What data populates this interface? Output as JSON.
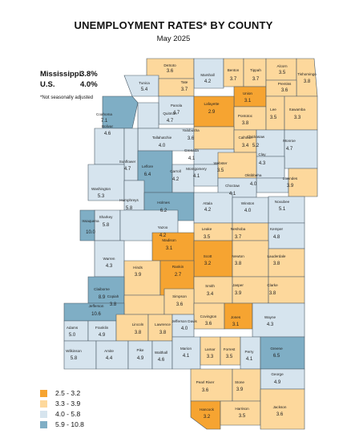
{
  "title": "UNEMPLOYMENT RATES* BY COUNTY",
  "subtitle": "May 2025",
  "stats": [
    {
      "label": "Mississippi",
      "value": "3.8%"
    },
    {
      "label": "U.S.",
      "value": "4.0%"
    }
  ],
  "note": "*Not seasonally adjusted",
  "colors": {
    "b1": "#f6a431",
    "b2": "#fdd89c",
    "b3": "#d6e4ee",
    "b4": "#7faec5",
    "border": "#4a5a66"
  },
  "legend": [
    {
      "label": "2.5 - 3.2",
      "bin": "b1"
    },
    {
      "label": "3.3 - 3.9",
      "bin": "b2"
    },
    {
      "label": "4.0 - 5.8",
      "bin": "b3"
    },
    {
      "label": "5.9 - 10.8",
      "bin": "b4"
    }
  ],
  "counties": [
    {
      "name": "DeSoto",
      "value": "3.6",
      "bin": "b2"
    },
    {
      "name": "Marshall",
      "value": "4.2",
      "bin": "b3"
    },
    {
      "name": "Benton",
      "value": "3.7",
      "bin": "b2"
    },
    {
      "name": "Tippah",
      "value": "3.7",
      "bin": "b2"
    },
    {
      "name": "Alcorn",
      "value": "3.5",
      "bin": "b2"
    },
    {
      "name": "Tishomingo",
      "value": "3.8",
      "bin": "b2"
    },
    {
      "name": "Tunica",
      "value": "5.4",
      "bin": "b3"
    },
    {
      "name": "Tate",
      "value": "3.7",
      "bin": "b2"
    },
    {
      "name": "Union",
      "value": "3.1",
      "bin": "b1"
    },
    {
      "name": "Prentiss",
      "value": "3.6",
      "bin": "b2"
    },
    {
      "name": "Coahoma",
      "value": "7.1",
      "bin": "b4"
    },
    {
      "name": "Panola",
      "value": "4.7",
      "bin": "b3"
    },
    {
      "name": "Lafayette",
      "value": "2.9",
      "bin": "b1"
    },
    {
      "name": "Pontotoc",
      "value": "3.8",
      "bin": "b2"
    },
    {
      "name": "Lee",
      "value": "3.5",
      "bin": "b2"
    },
    {
      "name": "Itawamba",
      "value": "3.3",
      "bin": "b2"
    },
    {
      "name": "Quitman",
      "value": "4.7",
      "bin": "b3"
    },
    {
      "name": "Tallahatchie",
      "value": "4.0",
      "bin": "b3"
    },
    {
      "name": "Yalobusha",
      "value": "3.6",
      "bin": "b2"
    },
    {
      "name": "Calhoun",
      "value": "3.4",
      "bin": "b2"
    },
    {
      "name": "Chickasaw",
      "value": "5.2",
      "bin": "b3"
    },
    {
      "name": "Monroe",
      "value": "4.7",
      "bin": "b3"
    },
    {
      "name": "Bolivar",
      "value": "4.6",
      "bin": "b3"
    },
    {
      "name": "Grenada",
      "value": "4.1",
      "bin": "b3"
    },
    {
      "name": "Clay",
      "value": "4.3",
      "bin": "b3"
    },
    {
      "name": "Sunflower",
      "value": "4.7",
      "bin": "b3"
    },
    {
      "name": "Leflore",
      "value": "6.4",
      "bin": "b4"
    },
    {
      "name": "Carroll",
      "value": "4.2",
      "bin": "b3"
    },
    {
      "name": "Montgomery",
      "value": "4.1",
      "bin": "b3"
    },
    {
      "name": "Webster",
      "value": "3.5",
      "bin": "b2"
    },
    {
      "name": "Oktibbeha",
      "value": "4.0",
      "bin": "b3"
    },
    {
      "name": "Lowndes",
      "value": "3.9",
      "bin": "b2"
    },
    {
      "name": "Washington",
      "value": "5.3",
      "bin": "b3"
    },
    {
      "name": "Choctaw",
      "value": "4.1",
      "bin": "b3"
    },
    {
      "name": "Humphreys",
      "value": "5.8",
      "bin": "b3"
    },
    {
      "name": "Holmes",
      "value": "6.2",
      "bin": "b4"
    },
    {
      "name": "Attala",
      "value": "4.2",
      "bin": "b3"
    },
    {
      "name": "Winston",
      "value": "4.0",
      "bin": "b3"
    },
    {
      "name": "Noxubee",
      "value": "5.1",
      "bin": "b3"
    },
    {
      "name": "Sharkey",
      "value": "5.8",
      "bin": "b3"
    },
    {
      "name": "Issaquena",
      "value": "10.0",
      "bin": "b4"
    },
    {
      "name": "Yazoo",
      "value": "4.2",
      "bin": "b3"
    },
    {
      "name": "Leake",
      "value": "3.5",
      "bin": "b2"
    },
    {
      "name": "Neshoba",
      "value": "3.7",
      "bin": "b2"
    },
    {
      "name": "Kemper",
      "value": "4.8",
      "bin": "b3"
    },
    {
      "name": "Madison",
      "value": "3.1",
      "bin": "b1"
    },
    {
      "name": "Scott",
      "value": "3.2",
      "bin": "b1"
    },
    {
      "name": "Newton",
      "value": "3.8",
      "bin": "b2"
    },
    {
      "name": "Lauderdale",
      "value": "3.8",
      "bin": "b2"
    },
    {
      "name": "Warren",
      "value": "4.3",
      "bin": "b3"
    },
    {
      "name": "Hinds",
      "value": "3.9",
      "bin": "b2"
    },
    {
      "name": "Rankin",
      "value": "2.7",
      "bin": "b1"
    },
    {
      "name": "Smith",
      "value": "3.4",
      "bin": "b2"
    },
    {
      "name": "Jasper",
      "value": "3.9",
      "bin": "b2"
    },
    {
      "name": "Clarke",
      "value": "3.8",
      "bin": "b2"
    },
    {
      "name": "Claiborne",
      "value": "8.9",
      "bin": "b4"
    },
    {
      "name": "Copiah",
      "value": "3.8",
      "bin": "b2"
    },
    {
      "name": "Simpson",
      "value": "3.6",
      "bin": "b2"
    },
    {
      "name": "Jefferson",
      "value": "10.6",
      "bin": "b4"
    },
    {
      "name": "Covington",
      "value": "3.6",
      "bin": "b2"
    },
    {
      "name": "Jones",
      "value": "3.1",
      "bin": "b1"
    },
    {
      "name": "Wayne",
      "value": "4.3",
      "bin": "b3"
    },
    {
      "name": "Adams",
      "value": "5.0",
      "bin": "b3"
    },
    {
      "name": "Franklin",
      "value": "4.9",
      "bin": "b3"
    },
    {
      "name": "Lincoln",
      "value": "3.8",
      "bin": "b2"
    },
    {
      "name": "Lawrence",
      "value": "3.8",
      "bin": "b2"
    },
    {
      "name": "Jefferson Davis",
      "value": "4.0",
      "bin": "b3"
    },
    {
      "name": "Wilkinson",
      "value": "5.8",
      "bin": "b3"
    },
    {
      "name": "Amite",
      "value": "4.4",
      "bin": "b3"
    },
    {
      "name": "Pike",
      "value": "4.9",
      "bin": "b3"
    },
    {
      "name": "Walthall",
      "value": "4.6",
      "bin": "b3"
    },
    {
      "name": "Marion",
      "value": "4.1",
      "bin": "b3"
    },
    {
      "name": "Lamar",
      "value": "3.3",
      "bin": "b2"
    },
    {
      "name": "Forrest",
      "value": "3.5",
      "bin": "b2"
    },
    {
      "name": "Perry",
      "value": "4.1",
      "bin": "b3"
    },
    {
      "name": "Greene",
      "value": "6.5",
      "bin": "b4"
    },
    {
      "name": "George",
      "value": "4.9",
      "bin": "b3"
    },
    {
      "name": "Pearl River",
      "value": "3.6",
      "bin": "b2"
    },
    {
      "name": "Stone",
      "value": "3.9",
      "bin": "b2"
    },
    {
      "name": "Hancock",
      "value": "3.2",
      "bin": "b1"
    },
    {
      "name": "Harrison",
      "value": "3.5",
      "bin": "b2"
    },
    {
      "name": "Jackson",
      "value": "3.6",
      "bin": "b2"
    }
  ]
}
